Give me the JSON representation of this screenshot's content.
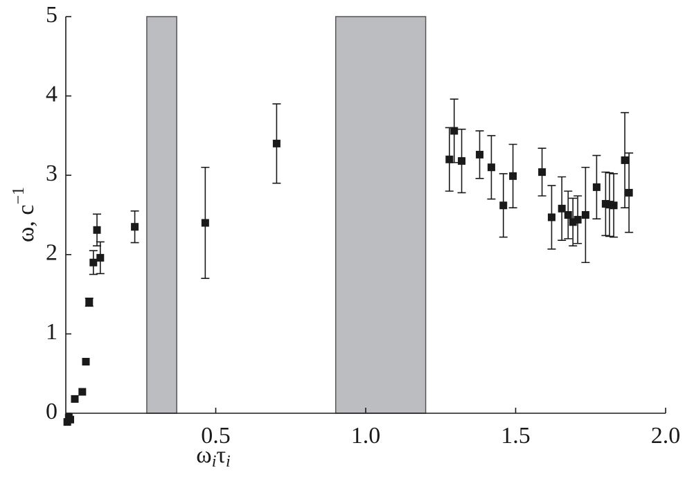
{
  "chart_data": {
    "type": "scatter",
    "x_label": [
      "ω",
      "i",
      "τ",
      "i"
    ],
    "y_label": [
      "ω, c",
      "−1"
    ],
    "x": [
      0.005,
      0.01,
      0.015,
      0.03,
      0.055,
      0.067,
      0.078,
      0.092,
      0.104,
      0.115,
      0.23,
      0.465,
      0.703,
      1.279,
      1.295,
      1.32,
      1.38,
      1.419,
      1.459,
      1.491,
      1.588,
      1.62,
      1.654,
      1.675,
      1.691,
      1.707,
      1.733,
      1.77,
      1.8,
      1.813,
      1.827,
      1.864,
      1.878
    ],
    "values": [
      -0.11,
      -0.05,
      -0.08,
      0.18,
      0.27,
      0.65,
      1.4,
      1.9,
      2.31,
      1.96,
      2.35,
      2.4,
      3.4,
      3.2,
      3.56,
      3.18,
      3.26,
      3.1,
      2.62,
      2.99,
      3.04,
      2.47,
      2.58,
      2.5,
      2.41,
      2.44,
      2.5,
      2.85,
      2.64,
      2.63,
      2.62,
      3.19,
      2.78
    ],
    "errors": [
      null,
      null,
      null,
      null,
      null,
      null,
      0.05,
      0.15,
      0.2,
      0.2,
      0.2,
      0.7,
      0.5,
      0.4,
      0.4,
      0.4,
      0.3,
      0.4,
      0.4,
      0.4,
      0.3,
      0.4,
      0.4,
      0.3,
      0.3,
      0.3,
      0.6,
      0.4,
      0.4,
      0.4,
      0.4,
      0.6,
      0.5
    ],
    "bands": [
      [
        0.27,
        0.37
      ],
      [
        0.9,
        1.2
      ]
    ],
    "color": "#1a1a1a",
    "band_color": "#bcbdc0",
    "xlim": [
      0,
      2
    ],
    "ylim": [
      0,
      5
    ],
    "xticks": [
      0.5,
      {
        "value": 1,
        "label": "1.0"
      },
      1.5,
      {
        "value": 2,
        "label": "2.0"
      }
    ],
    "yticks": [
      0,
      1,
      2,
      3,
      4,
      5
    ]
  }
}
